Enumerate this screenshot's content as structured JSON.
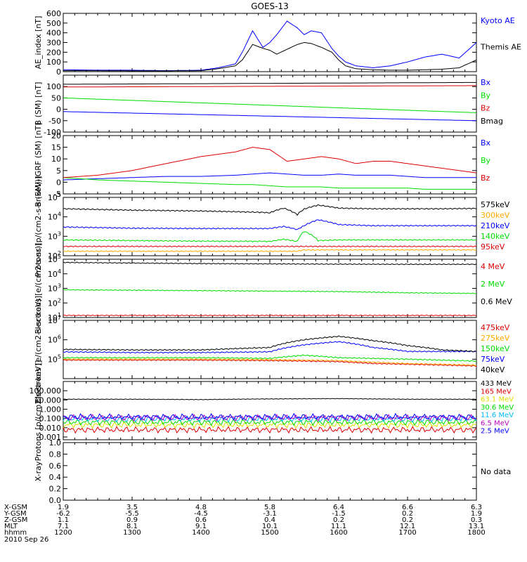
{
  "title": "GOES-13",
  "colors": {
    "black": "#000000",
    "blue": "#0000ff",
    "green": "#00dd00",
    "red": "#dd0000",
    "orange": "#ffaa00",
    "cyan": "#00bbff",
    "purple": "#bb00bb",
    "yellow": "#dddd00"
  },
  "chart_data": [
    {
      "type": "line",
      "ylabel": "AE_index [nT]",
      "ylim": [
        0,
        600
      ],
      "yticks": [
        "0",
        "100",
        "200",
        "300",
        "400",
        "500",
        "600"
      ],
      "x_hours": [
        12.0,
        12.5,
        13.0,
        13.5,
        14.0,
        14.25,
        14.5,
        14.6,
        14.75,
        14.9,
        15.0,
        15.1,
        15.25,
        15.4,
        15.5,
        15.6,
        15.75,
        15.9,
        16.0,
        16.1,
        16.25,
        16.5,
        16.75,
        17.0,
        17.25,
        17.5,
        17.75,
        18.0
      ],
      "series": [
        {
          "name": "Kyoto AE",
          "color": "blue",
          "values": [
            20,
            15,
            15,
            10,
            15,
            40,
            80,
            200,
            420,
            250,
            300,
            380,
            520,
            450,
            380,
            420,
            400,
            240,
            160,
            100,
            60,
            40,
            60,
            100,
            150,
            180,
            140,
            300
          ]
        },
        {
          "name": "Themis AE",
          "color": "black",
          "values": [
            10,
            10,
            8,
            8,
            10,
            30,
            60,
            120,
            280,
            240,
            220,
            180,
            230,
            280,
            300,
            290,
            250,
            200,
            120,
            60,
            30,
            20,
            15,
            15,
            20,
            25,
            40,
            120
          ]
        }
      ]
    },
    {
      "type": "line",
      "ylabel": "B (SM) [nT]",
      "ylim": [
        -100,
        150
      ],
      "yticks": [
        "-100",
        "-50",
        "0",
        "50",
        "100"
      ],
      "x_hours": [
        12.0,
        18.0
      ],
      "series": [
        {
          "name": "Bx",
          "color": "blue",
          "values": [
            -10,
            -50
          ]
        },
        {
          "name": "By",
          "color": "green",
          "values": [
            50,
            -15
          ]
        },
        {
          "name": "Bz",
          "color": "red",
          "values": [
            98,
            104
          ]
        },
        {
          "name": "Bmag",
          "color": "black",
          "values": [
            110,
            118
          ]
        }
      ]
    },
    {
      "type": "line",
      "ylabel": "B (SM)-IGRF (SM) [nT]",
      "ylim": [
        -5,
        20
      ],
      "yticks": [
        "-5",
        "0",
        "5",
        "10",
        "15",
        "20"
      ],
      "x_hours": [
        12.0,
        12.5,
        13.0,
        13.5,
        14.0,
        14.5,
        14.75,
        15.0,
        15.25,
        15.5,
        15.75,
        16.0,
        16.25,
        16.5,
        16.75,
        17.0,
        17.25,
        17.5,
        17.75,
        18.0
      ],
      "series": [
        {
          "name": "Bx",
          "color": "blue",
          "values": [
            1,
            1.5,
            2,
            2.5,
            2.5,
            3,
            3.5,
            4,
            3.5,
            3,
            3,
            3.5,
            3,
            3,
            3,
            2.5,
            2,
            2,
            2,
            2
          ]
        },
        {
          "name": "By",
          "color": "green",
          "values": [
            2,
            1,
            0.5,
            0,
            -0.5,
            -1,
            -1,
            -1.5,
            -2,
            -2,
            -2,
            -2.5,
            -2.5,
            -2.5,
            -2.5,
            -2.5,
            -3,
            -3,
            -3,
            -3
          ]
        },
        {
          "name": "Bz",
          "color": "red",
          "values": [
            2,
            3,
            5,
            8,
            11,
            13,
            15,
            14,
            9,
            10,
            11,
            10,
            8,
            9,
            9,
            8,
            7,
            6,
            5,
            4
          ]
        }
      ]
    },
    {
      "type": "line",
      "ylabel": "Protons [p/(cm2-s-sr-keV)]",
      "yscale": "log",
      "ylim": [
        100,
        100000
      ],
      "yticks": [
        "10^2",
        "10^3",
        "10^4",
        "10^5"
      ],
      "x_hours": [
        12.0,
        13.0,
        14.0,
        14.9,
        15.0,
        15.2,
        15.4,
        15.5,
        15.7,
        16.0,
        16.5,
        17.0,
        17.5,
        18.0
      ],
      "series": [
        {
          "name": "575keV",
          "color": "black",
          "values": [
            26000,
            22000,
            20000,
            17000,
            16000,
            28000,
            13000,
            25000,
            40000,
            28000,
            26000,
            26000,
            26000,
            27000
          ]
        },
        {
          "name": "300keV",
          "color": "orange",
          "values": [
            170,
            170,
            170,
            170,
            170,
            170,
            170,
            200,
            200,
            200,
            200,
            200,
            200,
            200
          ]
        },
        {
          "name": "210keV",
          "color": "blue",
          "values": [
            3000,
            2600,
            2500,
            2500,
            2500,
            3200,
            2200,
            3500,
            7000,
            4000,
            3500,
            3500,
            3500,
            3500
          ]
        },
        {
          "name": "140keV",
          "color": "green",
          "values": [
            650,
            600,
            560,
            550,
            540,
            700,
            540,
            1800,
            600,
            650,
            650,
            650,
            650,
            650
          ]
        },
        {
          "name": "95keV",
          "color": "red",
          "values": [
            300,
            300,
            300,
            300,
            300,
            300,
            300,
            300,
            300,
            300,
            300,
            300,
            300,
            300
          ]
        }
      ]
    },
    {
      "type": "line",
      "ylabel": "Electrons [e/(cm2-s-sr)]",
      "yscale": "log",
      "ylim": [
        10,
        100000
      ],
      "yticks": [
        "10^1",
        "10^2",
        "10^3",
        "10^4",
        "10^5"
      ],
      "x_hours": [
        12.0,
        13.0,
        14.0,
        15.0,
        16.0,
        17.0,
        18.0
      ],
      "series": [
        {
          "name": "4 MeV",
          "color": "red",
          "values": [
            14,
            14,
            14,
            14,
            14,
            14,
            14
          ]
        },
        {
          "name": "2 MeV",
          "color": "green",
          "values": [
            800,
            750,
            700,
            650,
            600,
            500,
            450
          ]
        },
        {
          "name": "0.6 MeV",
          "color": "black",
          "values": [
            60000,
            55000,
            50000,
            48000,
            46000,
            45000,
            45000
          ]
        }
      ]
    },
    {
      "type": "line",
      "ylabel": "Electrons [e/(cm2-s-sr-keV)]",
      "yscale": "log",
      "ylim": [
        10000,
        10000000
      ],
      "yticks": [
        "10^5",
        "10^6",
        "10^7"
      ],
      "x_hours": [
        12.0,
        13.0,
        14.0,
        15.0,
        15.5,
        16.0,
        16.5,
        17.0,
        17.5,
        18.0
      ],
      "series": [
        {
          "name": "475keV",
          "color": "red",
          "values": [
            90000,
            90000,
            90000,
            85000,
            80000,
            75000,
            60000,
            55000,
            50000,
            45000
          ]
        },
        {
          "name": "275keV",
          "color": "orange",
          "values": [
            100000,
            100000,
            100000,
            95000,
            90000,
            85000,
            70000,
            60000,
            55000,
            50000
          ]
        },
        {
          "name": "150keV",
          "color": "green",
          "values": [
            120000,
            120000,
            120000,
            110000,
            160000,
            120000,
            110000,
            100000,
            90000,
            80000
          ]
        },
        {
          "name": "75keV",
          "color": "blue",
          "values": [
            240000,
            220000,
            220000,
            240000,
            550000,
            800000,
            400000,
            250000,
            250000,
            250000
          ]
        },
        {
          "name": "40keV",
          "color": "black",
          "values": [
            320000,
            300000,
            300000,
            400000,
            1000000,
            1500000,
            900000,
            500000,
            300000,
            250000
          ]
        }
      ]
    },
    {
      "type": "line",
      "ylabel": "Protons [p/(cm2-s-sr-keV)]",
      "yscale": "log",
      "ylim": [
        0.0005,
        1000
      ],
      "yticks": [
        "0.001",
        "0.010",
        "0.100",
        "1.000",
        "10.000",
        "100.000"
      ],
      "x_hours": [
        12.0,
        13.0,
        14.0,
        15.0,
        16.0,
        17.0,
        18.0
      ],
      "series": [
        {
          "name": "433 MeV",
          "color": "black",
          "values": [
            12,
            12,
            11,
            13,
            14,
            12,
            12
          ]
        },
        {
          "name": "165 MeV",
          "color": "red",
          "values": [
            0.006,
            0.006,
            0.006,
            0.006,
            0.006,
            0.006,
            0.006
          ]
        },
        {
          "name": "63.1 MeV",
          "color": "yellow",
          "values": [
            0.02,
            0.02,
            0.02,
            0.02,
            0.02,
            0.02,
            0.02
          ]
        },
        {
          "name": "30.6 MeV",
          "color": "green",
          "values": [
            0.04,
            0.04,
            0.04,
            0.04,
            0.04,
            0.04,
            0.04
          ]
        },
        {
          "name": "11.6 MeV",
          "color": "cyan",
          "values": [
            0.09,
            0.09,
            0.09,
            0.09,
            0.09,
            0.09,
            0.09
          ]
        },
        {
          "name": "6.5 MeV",
          "color": "purple",
          "values": [
            0.12,
            0.12,
            0.12,
            0.12,
            0.12,
            0.12,
            0.12
          ]
        },
        {
          "name": "2.5 MeV",
          "color": "blue",
          "values": [
            0.15,
            0.15,
            0.15,
            0.15,
            0.15,
            0.15,
            0.15
          ]
        }
      ]
    },
    {
      "type": "line",
      "ylabel": "X-ray",
      "ylim": [
        0,
        1
      ],
      "yticks": [
        "0.0",
        "0.2",
        "0.4",
        "0.6",
        "0.8",
        "1.0"
      ],
      "nodata": "No data",
      "series": []
    }
  ],
  "footer": {
    "row_labels": [
      "X-GSM",
      "Y-GSM",
      "Z-GSM",
      "MLT",
      "hhmm"
    ],
    "columns": [
      [
        "1.9",
        "-6.2",
        "1.1",
        "7.1",
        "1200"
      ],
      [
        "3.5",
        "-5.5",
        "0.9",
        "8.1",
        "1300"
      ],
      [
        "4.8",
        "-4.5",
        "0.6",
        "9.1",
        "1400"
      ],
      [
        "5.8",
        "-3.1",
        "0.4",
        "10.1",
        "1500"
      ],
      [
        "6.4",
        "-1.5",
        "0.2",
        "11.1",
        "1600"
      ],
      [
        "6.6",
        "0.2",
        "0.2",
        "12.1",
        "1700"
      ],
      [
        "6.3",
        "1.9",
        "0.3",
        "13.1",
        "1800"
      ]
    ],
    "date": "2010 Sep 26"
  }
}
